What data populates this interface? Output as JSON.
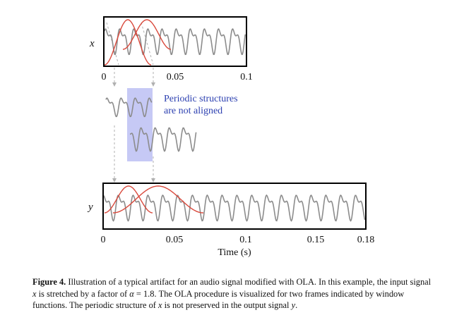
{
  "figure": {
    "top_label": "x",
    "top_ticks": [
      "0",
      "0.05",
      "0.1"
    ],
    "annotation_line1": "Periodic structures",
    "annotation_line2": "are not aligned",
    "bottom_label": "y",
    "bottom_ticks": [
      "0",
      "0.05",
      "0.1",
      "0.15",
      "0.18"
    ],
    "bottom_xlabel": "Time (s)",
    "colors": {
      "signal": "#8c8c8c",
      "window": "#d9483b",
      "highlight": "#c6c9f5",
      "annotation": "#2b3fb0",
      "arrows": "#b0b0b0"
    }
  },
  "caption": {
    "label": "Figure 4.",
    "text_1": " Illustration of a typical artifact for an audio signal modified with OLA. In this example, the input signal ",
    "var_x1": "x",
    "text_2": " is stretched by a factor of ",
    "alpha": "α",
    "text_3": " = 1.8. The OLA procedure is visualized for two frames indicated by window functions. The periodic structure of ",
    "var_x2": "x",
    "text_4": " is not preserved in the output signal ",
    "var_y": "y",
    "text_5": "."
  }
}
